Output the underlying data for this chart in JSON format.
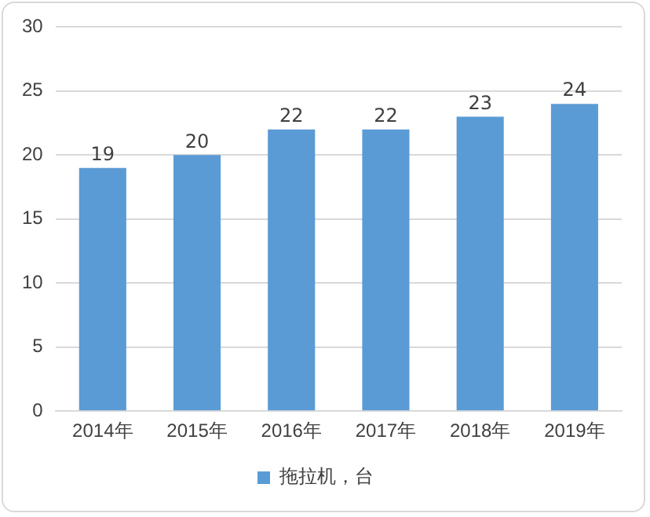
{
  "chart_data": {
    "type": "bar",
    "categories": [
      "2014年",
      "2015年",
      "2016年",
      "2017年",
      "2018年",
      "2019年"
    ],
    "series": [
      {
        "name": "拖拉机，台",
        "color": "#5b9bd5",
        "values": [
          19,
          20,
          22,
          22,
          23,
          24
        ]
      }
    ],
    "ylim": [
      0,
      30
    ],
    "yticks": [
      0,
      5,
      10,
      15,
      20,
      25,
      30
    ],
    "grid": "y",
    "legend": "bottom",
    "data_labels": true
  }
}
